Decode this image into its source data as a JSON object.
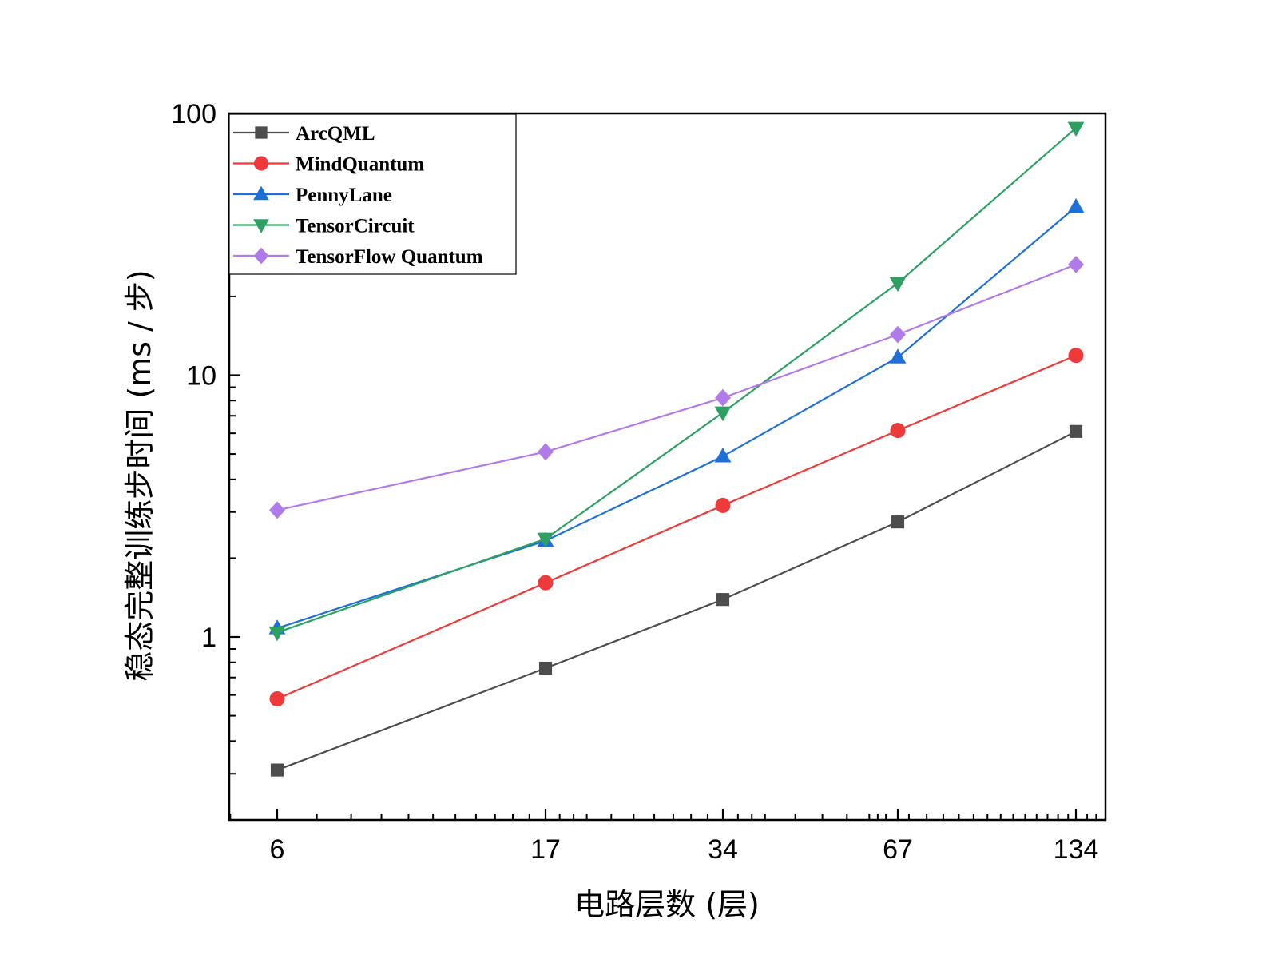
{
  "chart_data": {
    "type": "line",
    "xlabel": "电路层数 (层)",
    "ylabel": "稳态完整训练步时间 (ms / 步)",
    "x_scale": "log",
    "y_scale": "log",
    "x": [
      6,
      17,
      34,
      67,
      134
    ],
    "x_tick_labels": [
      "6",
      "17",
      "34",
      "67",
      "134"
    ],
    "y_tick_labels": [
      "1",
      "10",
      "100"
    ],
    "ylim": [
      0.2,
      100
    ],
    "grid": false,
    "legend_position": "top-left",
    "series": [
      {
        "name": "ArcQML",
        "color": "#4d4d4d",
        "marker": "square",
        "values": [
          0.31,
          0.76,
          1.39,
          2.75,
          6.1
        ]
      },
      {
        "name": "MindQuantum",
        "color": "#ee3a3a",
        "marker": "circle",
        "values": [
          0.58,
          1.61,
          3.18,
          6.15,
          11.9
        ]
      },
      {
        "name": "PennyLane",
        "color": "#1f6fd8",
        "marker": "triangle-up",
        "values": [
          1.08,
          2.33,
          4.9,
          11.7,
          44
        ]
      },
      {
        "name": "TensorCircuit",
        "color": "#2ea063",
        "marker": "triangle-down",
        "values": [
          1.04,
          2.37,
          7.2,
          22.5,
          88
        ]
      },
      {
        "name": "TensorFlow Quantum",
        "color": "#b07ae8",
        "marker": "diamond",
        "values": [
          3.05,
          5.1,
          8.2,
          14.3,
          26.5
        ]
      }
    ]
  }
}
